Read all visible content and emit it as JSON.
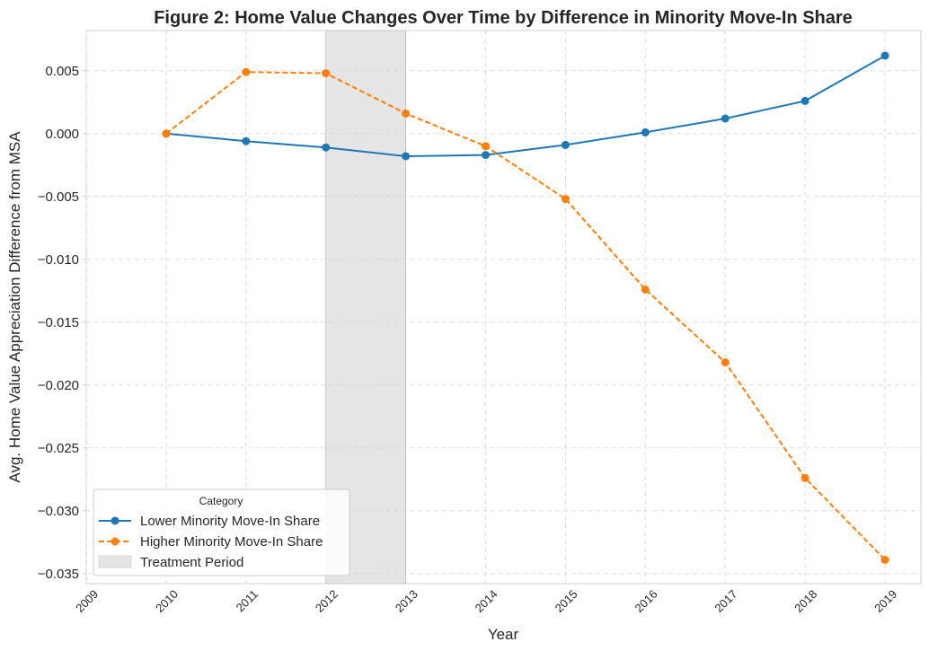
{
  "chart_data": {
    "type": "line",
    "title": "Figure 2: Home Value Changes Over Time by Difference in Minority Move-In Share",
    "xlabel": "Year",
    "ylabel": "Avg. Home Value Appreciation Difference from MSA",
    "xlim": [
      2009,
      2019.45
    ],
    "ylim": [
      -0.0358,
      0.0082
    ],
    "xticks": [
      2009,
      2010,
      2011,
      2012,
      2013,
      2014,
      2015,
      2016,
      2017,
      2018,
      2019
    ],
    "xtick_labels": [
      "2009",
      "2010",
      "2011",
      "2012",
      "2013",
      "2014",
      "2015",
      "2016",
      "2017",
      "2018",
      "2019"
    ],
    "yticks": [
      0.005,
      0.0,
      -0.005,
      -0.01,
      -0.015,
      -0.02,
      -0.025,
      -0.03,
      -0.035
    ],
    "ytick_labels": [
      "0.005",
      "0.000",
      "−0.005",
      "−0.010",
      "−0.015",
      "−0.020",
      "−0.025",
      "−0.030",
      "−0.035"
    ],
    "grid": true,
    "shaded_region": {
      "x": [
        2012,
        2013
      ],
      "label": "Treatment Period",
      "color": "#d3d3d3"
    },
    "legend": {
      "title": "Category",
      "placement": "lower-left"
    },
    "x": [
      2010,
      2011,
      2012,
      2013,
      2014,
      2015,
      2016,
      2017,
      2018,
      2019
    ],
    "series": [
      {
        "name": "Lower Minority Move-In Share",
        "color": "#1f77b4",
        "style": "solid",
        "marker": "circle",
        "values": [
          0.0,
          -0.0006,
          -0.0011,
          -0.0018,
          -0.0017,
          -0.0009,
          0.0001,
          0.0012,
          0.0026,
          0.0062
        ]
      },
      {
        "name": "Higher Minority Move-In Share",
        "color": "#ff7f0e",
        "style": "dashed",
        "marker": "circle",
        "values": [
          0.0,
          0.0049,
          0.0048,
          0.0016,
          -0.001,
          -0.0052,
          -0.0124,
          -0.0182,
          -0.0274,
          -0.0339
        ]
      }
    ]
  }
}
